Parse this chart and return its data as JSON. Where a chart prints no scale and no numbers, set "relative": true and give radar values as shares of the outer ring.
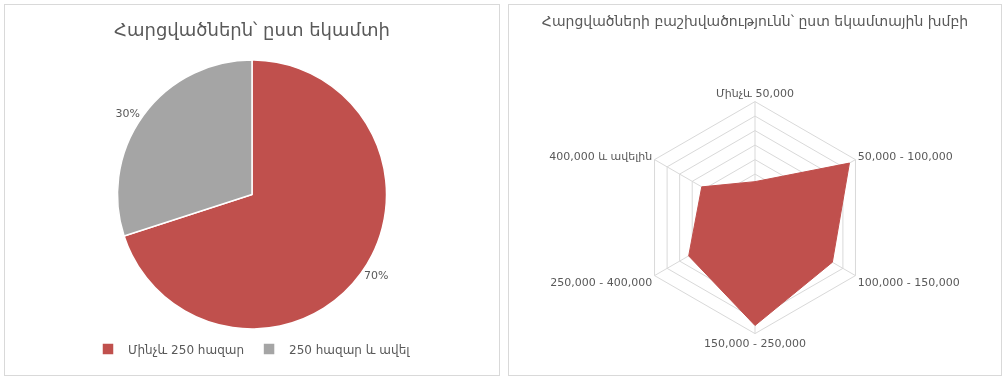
{
  "chart_data": [
    {
      "type": "pie",
      "title": "Հարցվածներն՝ ըստ եկամտի",
      "categories": [
        "Մինչև 250 հազար",
        "250 հազար և ավել"
      ],
      "values": [
        70,
        30
      ],
      "colors": [
        "#c0504d",
        "#a5a5a5"
      ],
      "value_labels": [
        "70%",
        "30%"
      ],
      "legend": "bottom"
    },
    {
      "type": "radar",
      "title": "Հարցվածների բաշխվածությունն՝ ըստ եկամտային խմբի",
      "categories": [
        "Մինչև 50,000",
        "50,000 - 100,000",
        "100,000 - 150,000",
        "150,000 - 250,000",
        "250,000 - 400,000",
        "400,000 և ավելին"
      ],
      "relative": true,
      "series": [
        {
          "color": "#c0504d",
          "values": [
            0.31,
            0.94,
            0.77,
            0.93,
            0.66,
            0.53
          ]
        }
      ],
      "legend": false
    }
  ]
}
